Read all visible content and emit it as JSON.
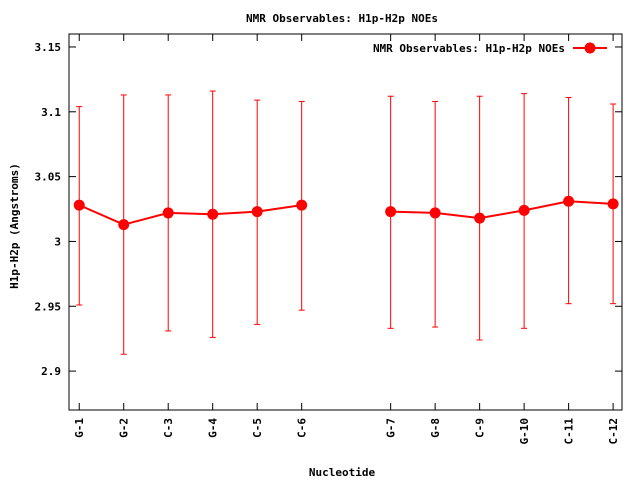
{
  "chart_data": {
    "type": "line",
    "title": "NMR Observables: H1p-H2p NOEs",
    "xlabel": "Nucleotide",
    "ylabel": "H1p-H2p (Angstroms)",
    "ylim": [
      2.87,
      3.16
    ],
    "yticks": [
      2.9,
      2.95,
      3.0,
      3.05,
      3.1,
      3.15
    ],
    "ytick_labels": [
      "2.9",
      "2.95",
      "3",
      "3.05",
      "3.1",
      "3.15"
    ],
    "legend_position": "top-right",
    "grid": false,
    "color": "#ff0000",
    "categories": [
      "G-1",
      "G-2",
      "C-3",
      "G-4",
      "C-5",
      "C-6",
      "G-7",
      "G-8",
      "C-9",
      "G-10",
      "C-11",
      "C-12"
    ],
    "x": [
      1,
      2,
      3,
      4,
      5,
      6,
      8,
      9,
      10,
      11,
      12,
      13
    ],
    "xlim": [
      0.77,
      13.2
    ],
    "series": [
      {
        "name": "NMR Observables: H1p-H2p NOEs",
        "values": [
          3.028,
          3.013,
          3.022,
          3.021,
          3.023,
          3.028,
          3.023,
          3.022,
          3.018,
          3.024,
          3.031,
          3.029
        ],
        "err_low": [
          2.951,
          2.913,
          2.931,
          2.926,
          2.936,
          2.947,
          2.933,
          2.934,
          2.924,
          2.933,
          2.952,
          2.952
        ],
        "err_high": [
          3.104,
          3.113,
          3.113,
          3.116,
          3.109,
          3.108,
          3.112,
          3.108,
          3.112,
          3.114,
          3.111,
          3.106
        ]
      }
    ]
  }
}
